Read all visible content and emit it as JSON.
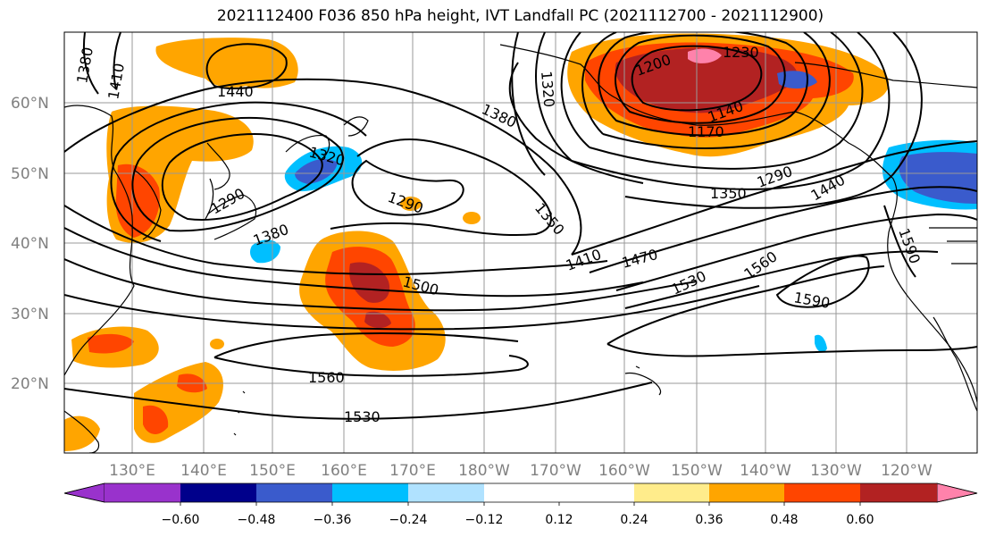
{
  "title": "2021112400 F036 850 hPa height, IVT Landfall PC (2021112700 - 2021112900)",
  "lat_labels": [
    "60°N",
    "50°N",
    "40°N",
    "30°N",
    "20°N"
  ],
  "lon_labels": [
    "130°E",
    "140°E",
    "150°E",
    "160°E",
    "170°E",
    "180°W",
    "170°W",
    "160°W",
    "150°W",
    "140°W",
    "130°W",
    "120°W"
  ],
  "contour_labels": [
    "1380",
    "1410",
    "1440",
    "1320",
    "1290",
    "1380",
    "1290",
    "1350",
    "1380",
    "1500",
    "1560",
    "1530",
    "1410",
    "1470",
    "1530",
    "1560",
    "1590",
    "1590",
    "1200",
    "1230",
    "1140",
    "1170",
    "1350",
    "1290",
    "1440",
    "1320"
  ],
  "colorbar": {
    "ticks": [
      "−0.60",
      "−0.48",
      "−0.36",
      "−0.24",
      "−0.12",
      "0.12",
      "0.24",
      "0.36",
      "0.48",
      "0.60"
    ],
    "colors": [
      "#9932cc",
      "#00008b",
      "#3a5bcc",
      "#00bfff",
      "#b0e2ff",
      "#ffffff",
      "#ffec8b",
      "#ffa500",
      "#ff4500",
      "#b22222",
      "#ff82ab"
    ]
  }
}
